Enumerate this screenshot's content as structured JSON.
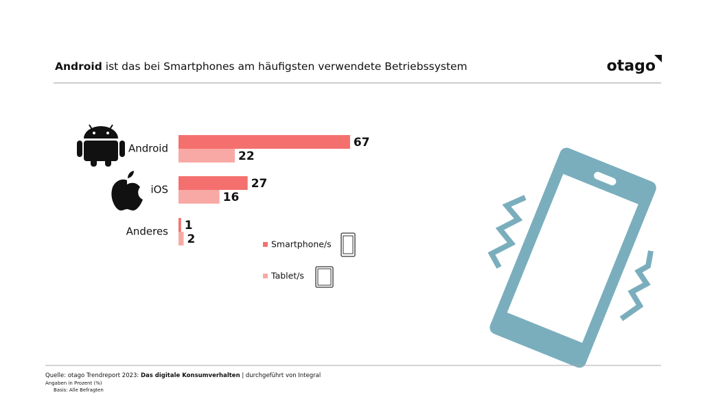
{
  "chart_data": {
    "type": "bar",
    "orientation": "horizontal",
    "title_bold": "Android",
    "title": "ist das bei Smartphones am häufigsten verwendete Betriebssystem",
    "brand": "otago",
    "categories": [
      "Android",
      "iOS",
      "Anderes"
    ],
    "series": [
      {
        "name": "Smartphone/s",
        "color": "#f4706e",
        "values": [
          67,
          27,
          1
        ]
      },
      {
        "name": "Tablet/s",
        "color": "#f8a9a5",
        "values": [
          22,
          16,
          2
        ]
      }
    ],
    "source_prefix": "Quelle: otago Trendreport 2023:",
    "source_bold": "Das digitale Konsumverhalten",
    "source_suffix": "| durchgeführt von Integral",
    "notes": [
      "Angaben in Prozent (%)",
      "Basis: Alle Befragten"
    ]
  }
}
